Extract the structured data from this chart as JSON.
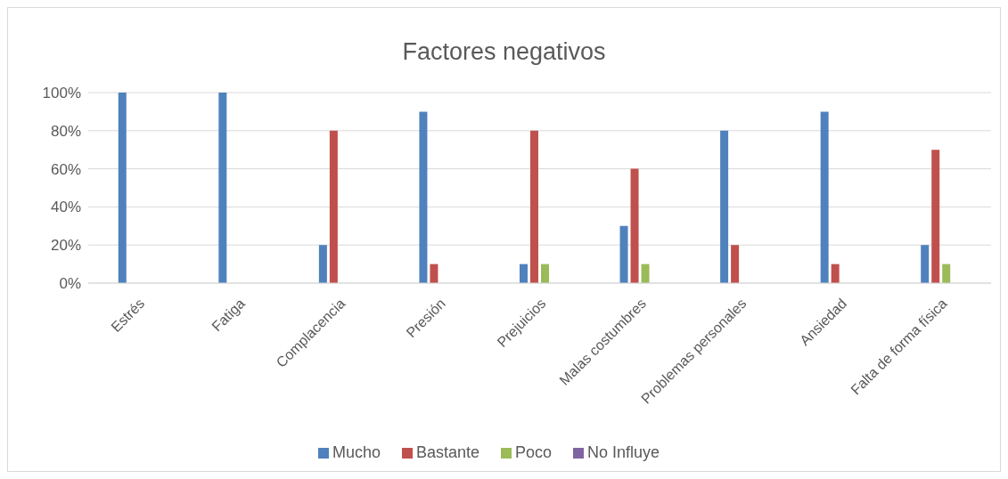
{
  "chart_data": {
    "type": "bar",
    "title": "Factores negativos",
    "categories": [
      "Estrés",
      "Fatiga",
      "Complacencia",
      "Presión",
      "Prejuicios",
      "Malas costumbres",
      "Problemas personales",
      "Ansiedad",
      "Falta de forma física"
    ],
    "series": [
      {
        "name": "Mucho",
        "color": "#4f81bd",
        "values": [
          100,
          100,
          20,
          90,
          10,
          30,
          80,
          90,
          20
        ]
      },
      {
        "name": "Bastante",
        "color": "#c0504d",
        "values": [
          0,
          0,
          80,
          10,
          80,
          60,
          20,
          10,
          70
        ]
      },
      {
        "name": "Poco",
        "color": "#9bbb59",
        "values": [
          0,
          0,
          0,
          0,
          10,
          10,
          0,
          0,
          10
        ]
      },
      {
        "name": "No Influye",
        "color": "#8064a2",
        "values": [
          0,
          0,
          0,
          0,
          0,
          0,
          0,
          0,
          0
        ]
      }
    ],
    "ylim": [
      0,
      100
    ],
    "yticks": [
      {
        "value": 0,
        "label": "0%"
      },
      {
        "value": 20,
        "label": "20%"
      },
      {
        "value": 40,
        "label": "40%"
      },
      {
        "value": 60,
        "label": "60%"
      },
      {
        "value": 80,
        "label": "80%"
      },
      {
        "value": 100,
        "label": "100%"
      }
    ],
    "grid": "y",
    "legend": "bottom"
  }
}
